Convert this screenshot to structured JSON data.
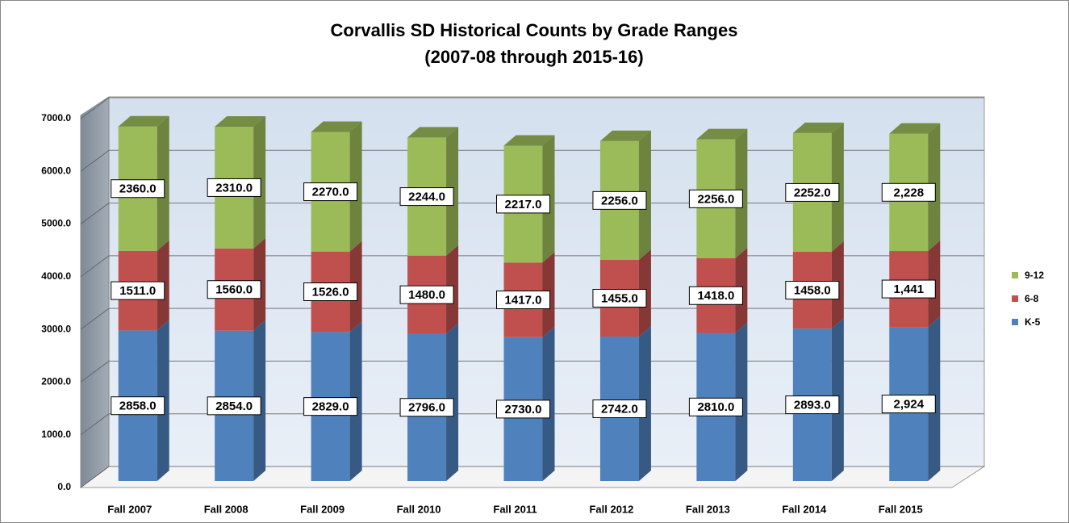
{
  "chart_data": {
    "type": "bar3d_stacked",
    "title": "Corvallis SD Historical Counts by Grade Ranges",
    "subtitle": "(2007-08 through 2015-16)",
    "categories": [
      "Fall 2007",
      "Fall 2008",
      "Fall 2009",
      "Fall 2010",
      "Fall 2011",
      "Fall 2012",
      "Fall 2013",
      "Fall 2014",
      "Fall 2015"
    ],
    "series": [
      {
        "name": "K-5",
        "color": "#4f81bd",
        "values": [
          2858,
          2854,
          2829,
          2796,
          2730,
          2742,
          2810,
          2893,
          2924
        ],
        "value_labels": [
          "2858.0",
          "2854.0",
          "2829.0",
          "2796.0",
          "2730.0",
          "2742.0",
          "2810.0",
          "2893.0",
          "2,924"
        ]
      },
      {
        "name": "6-8",
        "color": "#c0504d",
        "values": [
          1511,
          1560,
          1526,
          1480,
          1417,
          1455,
          1418,
          1458,
          1441
        ],
        "value_labels": [
          "1511.0",
          "1560.0",
          "1526.0",
          "1480.0",
          "1417.0",
          "1455.0",
          "1418.0",
          "1458.0",
          "1,441"
        ]
      },
      {
        "name": "9-12",
        "color": "#9bbb59",
        "values": [
          2360,
          2310,
          2270,
          2244,
          2217,
          2256,
          2256,
          2252,
          2228
        ],
        "value_labels": [
          "2360.0",
          "2310.0",
          "2270.0",
          "2244.0",
          "2217.0",
          "2256.0",
          "2256.0",
          "2252.0",
          "2,228"
        ]
      }
    ],
    "ylim": [
      0,
      7000
    ],
    "yticks": [
      {
        "value": 0,
        "label": "0.0"
      },
      {
        "value": 1000,
        "label": "1000.0"
      },
      {
        "value": 2000,
        "label": "2000.0"
      },
      {
        "value": 3000,
        "label": "3000.0"
      },
      {
        "value": 4000,
        "label": "4000.0"
      },
      {
        "value": 5000,
        "label": "5000.0"
      },
      {
        "value": 6000,
        "label": "6000.0"
      },
      {
        "value": 7000,
        "label": "7000.0"
      }
    ],
    "grid": true,
    "legend": "right"
  }
}
